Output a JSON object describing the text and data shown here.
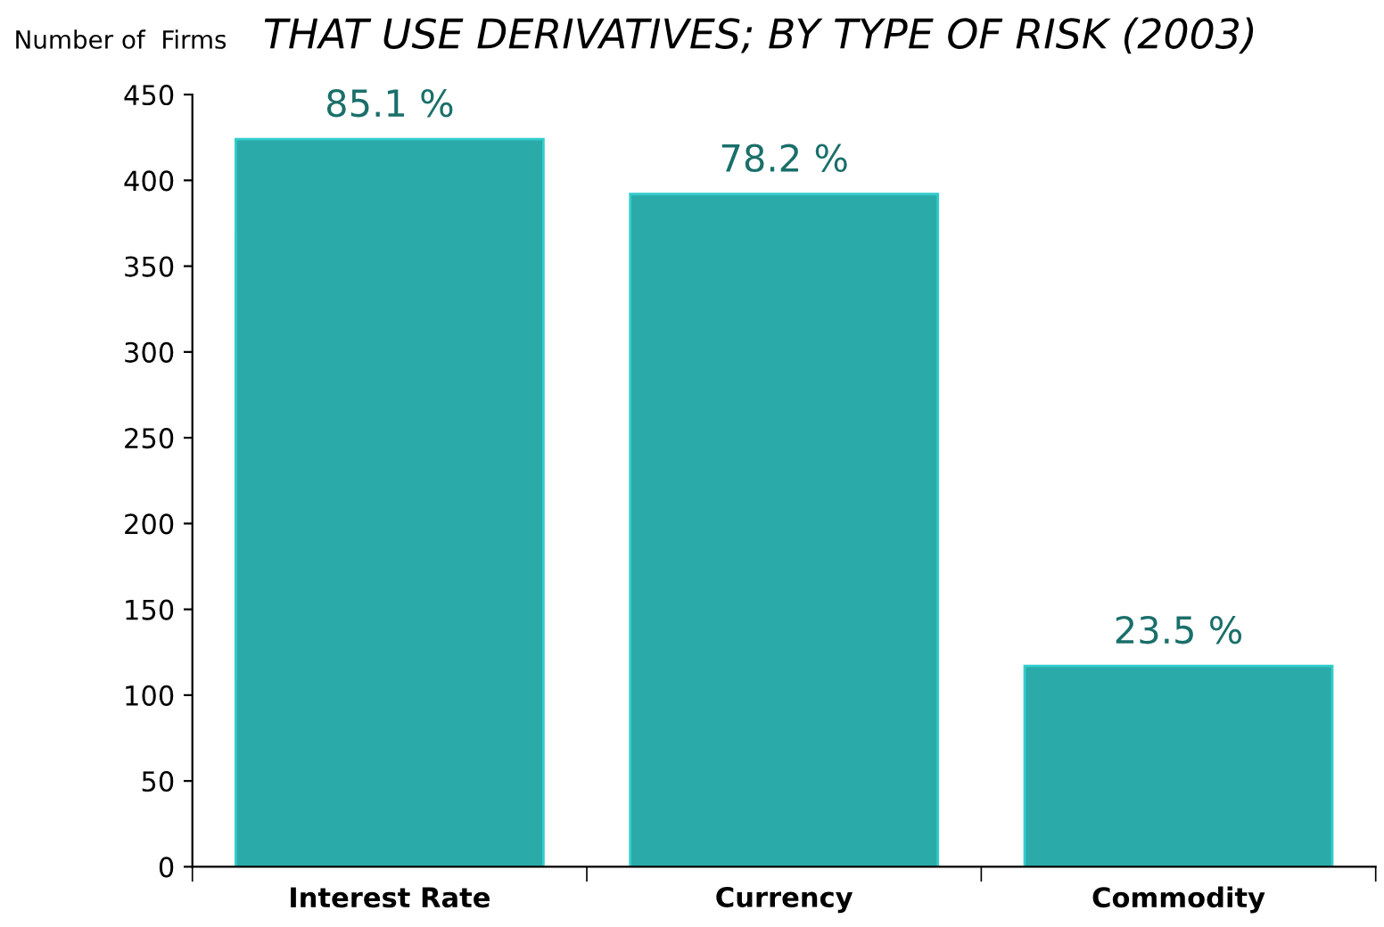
{
  "chart_data": {
    "type": "bar",
    "title": "THAT USE DERIVATIVES; BY TYPE OF RISK (2003)",
    "ylabel": "Number of  Firms",
    "categories": [
      "Interest Rate",
      "Currency",
      "Commodity"
    ],
    "values": [
      424,
      392,
      117
    ],
    "annotations": [
      {
        "text": "85.1 %",
        "x": "Interest Rate",
        "y": 424
      },
      {
        "text": "78.2 %",
        "x": "Currency",
        "y": 392
      },
      {
        "text": "23.5 %",
        "x": "Commodity",
        "y": 117
      }
    ],
    "color": "#2aaaa8",
    "ylim": [
      0,
      450
    ],
    "yticks": [
      0,
      50,
      100,
      150,
      200,
      250,
      300,
      350,
      400,
      450
    ],
    "grid": false,
    "legend": false
  }
}
